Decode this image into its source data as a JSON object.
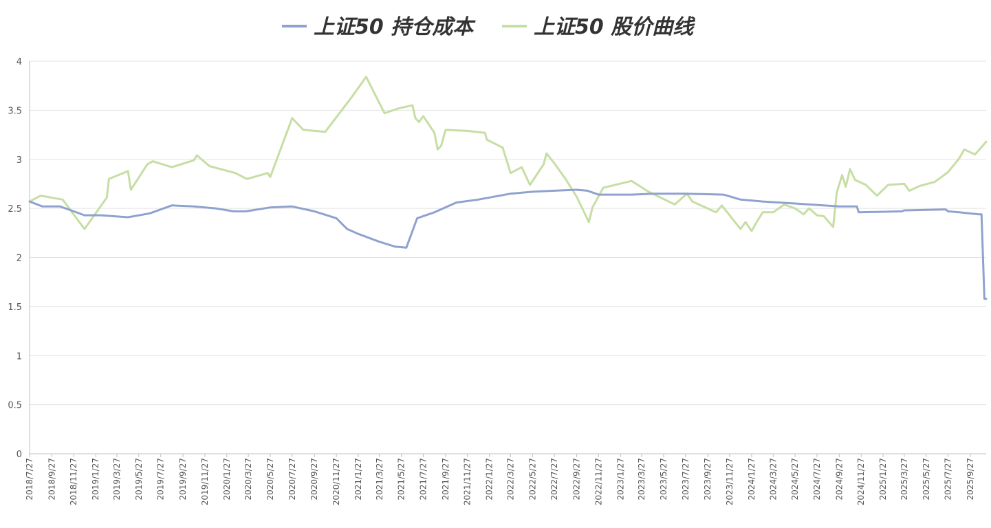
{
  "chart_data": {
    "type": "line",
    "title": "",
    "xlabel": "",
    "ylabel": "",
    "ylim": [
      0,
      4
    ],
    "yticks": [
      "0",
      "0.5",
      "1",
      "1.5",
      "2",
      "2.5",
      "3",
      "3.5",
      "4"
    ],
    "x_tick_labels": [
      "2018/7/27",
      "2018/9/27",
      "2018/11/27",
      "2019/1/27",
      "2019/3/27",
      "2019/5/27",
      "2019/7/27",
      "2019/9/27",
      "2019/11/27",
      "2020/1/27",
      "2020/3/27",
      "2020/5/27",
      "2020/7/27",
      "2020/9/27",
      "2020/11/27",
      "2021/1/27",
      "2021/3/27",
      "2021/5/27",
      "2021/7/27",
      "2021/9/27",
      "2021/11/27",
      "2022/1/27",
      "2022/3/27",
      "2022/5/27",
      "2022/7/27",
      "2022/9/27",
      "2022/11/27",
      "2023/1/27",
      "2023/3/27",
      "2023/5/27",
      "2023/7/27",
      "2023/9/27",
      "2023/11/27",
      "2024/1/27",
      "2024/3/27",
      "2024/5/27",
      "2024/7/27",
      "2024/9/27",
      "2024/11/27",
      "2025/1/27",
      "2025/3/27",
      "2025/5/27",
      "2025/7/27",
      "2025/9/27"
    ],
    "x_range": [
      "2018/7/27",
      "2025/11/10"
    ],
    "grid": true,
    "legend_position": "top-center",
    "series": [
      {
        "name": "上证50 持仓成本",
        "color": "#8fa2cf",
        "points": [
          [
            "2018/7/27",
            2.57
          ],
          [
            "2018/9/1",
            2.52
          ],
          [
            "2018/10/20",
            2.52
          ],
          [
            "2018/11/27",
            2.47
          ],
          [
            "2018/12/27",
            2.43
          ],
          [
            "2019/2/10",
            2.43
          ],
          [
            "2019/4/27",
            2.41
          ],
          [
            "2019/6/27",
            2.45
          ],
          [
            "2019/8/27",
            2.53
          ],
          [
            "2019/10/27",
            2.52
          ],
          [
            "2019/12/27",
            2.5
          ],
          [
            "2020/2/15",
            2.47
          ],
          [
            "2020/3/20",
            2.47
          ],
          [
            "2020/5/27",
            2.51
          ],
          [
            "2020/7/27",
            2.52
          ],
          [
            "2020/9/27",
            2.47
          ],
          [
            "2020/11/27",
            2.4
          ],
          [
            "2020/12/27",
            2.29
          ],
          [
            "2021/1/27",
            2.24
          ],
          [
            "2021/3/27",
            2.16
          ],
          [
            "2021/5/10",
            2.11
          ],
          [
            "2021/6/10",
            2.1
          ],
          [
            "2021/7/10",
            2.4
          ],
          [
            "2021/8/27",
            2.46
          ],
          [
            "2021/10/27",
            2.56
          ],
          [
            "2021/12/27",
            2.59
          ],
          [
            "2022/3/27",
            2.65
          ],
          [
            "2022/5/27",
            2.67
          ],
          [
            "2022/7/27",
            2.68
          ],
          [
            "2022/9/27",
            2.69
          ],
          [
            "2022/10/27",
            2.68
          ],
          [
            "2022/11/27",
            2.64
          ],
          [
            "2023/2/27",
            2.64
          ],
          [
            "2023/4/27",
            2.65
          ],
          [
            "2023/7/27",
            2.65
          ],
          [
            "2023/11/10",
            2.64
          ],
          [
            "2023/12/27",
            2.59
          ],
          [
            "2024/2/27",
            2.57
          ],
          [
            "2024/5/27",
            2.55
          ],
          [
            "2024/9/27",
            2.52
          ],
          [
            "2024/11/15",
            2.52
          ],
          [
            "2024/11/20",
            2.46
          ],
          [
            "2025/3/20",
            2.47
          ],
          [
            "2025/3/27",
            2.48
          ],
          [
            "2025/7/20",
            2.49
          ],
          [
            "2025/7/27",
            2.47
          ],
          [
            "2025/8/27",
            2.46
          ],
          [
            "2025/10/20",
            2.44
          ],
          [
            "2025/10/28",
            2.44
          ],
          [
            "2025/11/5",
            1.58
          ],
          [
            "2025/11/10",
            1.58
          ]
        ]
      },
      {
        "name": "上证50 股价曲线",
        "color": "#c6dea3",
        "points": [
          [
            "2018/7/27",
            2.57
          ],
          [
            "2018/8/27",
            2.63
          ],
          [
            "2018/10/27",
            2.59
          ],
          [
            "2018/12/27",
            2.29
          ],
          [
            "2019/2/27",
            2.61
          ],
          [
            "2019/3/5",
            2.8
          ],
          [
            "2019/4/27",
            2.88
          ],
          [
            "2019/5/5",
            2.69
          ],
          [
            "2019/6/20",
            2.95
          ],
          [
            "2019/7/5",
            2.98
          ],
          [
            "2019/8/27",
            2.92
          ],
          [
            "2019/10/27",
            2.99
          ],
          [
            "2019/11/5",
            3.04
          ],
          [
            "2019/12/10",
            2.93
          ],
          [
            "2020/2/20",
            2.86
          ],
          [
            "2020/3/23",
            2.8
          ],
          [
            "2020/5/20",
            2.86
          ],
          [
            "2020/5/27",
            2.82
          ],
          [
            "2020/7/27",
            3.42
          ],
          [
            "2020/8/27",
            3.3
          ],
          [
            "2020/10/27",
            3.28
          ],
          [
            "2021/1/10",
            3.64
          ],
          [
            "2021/2/18",
            3.84
          ],
          [
            "2021/4/10",
            3.47
          ],
          [
            "2021/5/20",
            3.52
          ],
          [
            "2021/6/27",
            3.55
          ],
          [
            "2021/7/5",
            3.42
          ],
          [
            "2021/7/15",
            3.38
          ],
          [
            "2021/7/27",
            3.44
          ],
          [
            "2021/8/27",
            3.27
          ],
          [
            "2021/9/5",
            3.1
          ],
          [
            "2021/9/15",
            3.14
          ],
          [
            "2021/9/27",
            3.3
          ],
          [
            "2021/11/27",
            3.29
          ],
          [
            "2022/1/15",
            3.27
          ],
          [
            "2022/1/20",
            3.2
          ],
          [
            "2022/3/5",
            3.12
          ],
          [
            "2022/3/27",
            2.86
          ],
          [
            "2022/4/27",
            2.92
          ],
          [
            "2022/5/20",
            2.74
          ],
          [
            "2022/6/27",
            2.95
          ],
          [
            "2022/7/5",
            3.06
          ],
          [
            "2022/7/27",
            2.96
          ],
          [
            "2022/8/27",
            2.8
          ],
          [
            "2022/9/27",
            2.62
          ],
          [
            "2022/10/31",
            2.36
          ],
          [
            "2022/11/10",
            2.51
          ],
          [
            "2022/12/10",
            2.71
          ],
          [
            "2023/2/27",
            2.78
          ],
          [
            "2023/4/15",
            2.67
          ],
          [
            "2023/6/27",
            2.54
          ],
          [
            "2023/7/31",
            2.65
          ],
          [
            "2023/8/15",
            2.57
          ],
          [
            "2023/10/20",
            2.46
          ],
          [
            "2023/11/5",
            2.53
          ],
          [
            "2023/12/27",
            2.29
          ],
          [
            "2024/1/10",
            2.36
          ],
          [
            "2024/1/27",
            2.27
          ],
          [
            "2024/2/10",
            2.36
          ],
          [
            "2024/2/27",
            2.46
          ],
          [
            "2024/3/27",
            2.46
          ],
          [
            "2024/4/27",
            2.54
          ],
          [
            "2024/5/27",
            2.5
          ],
          [
            "2024/6/20",
            2.44
          ],
          [
            "2024/7/5",
            2.5
          ],
          [
            "2024/7/27",
            2.43
          ],
          [
            "2024/8/15",
            2.42
          ],
          [
            "2024/9/10",
            2.31
          ],
          [
            "2024/9/20",
            2.66
          ],
          [
            "2024/10/5",
            2.84
          ],
          [
            "2024/10/15",
            2.72
          ],
          [
            "2024/10/27",
            2.9
          ],
          [
            "2024/11/10",
            2.79
          ],
          [
            "2024/12/10",
            2.74
          ],
          [
            "2025/1/10",
            2.63
          ],
          [
            "2025/2/10",
            2.74
          ],
          [
            "2025/3/27",
            2.75
          ],
          [
            "2025/4/10",
            2.68
          ],
          [
            "2025/5/10",
            2.73
          ],
          [
            "2025/6/20",
            2.77
          ],
          [
            "2025/7/27",
            2.87
          ],
          [
            "2025/8/27",
            3.01
          ],
          [
            "2025/9/10",
            3.1
          ],
          [
            "2025/10/10",
            3.05
          ],
          [
            "2025/10/27",
            3.12
          ],
          [
            "2025/11/10",
            3.18
          ]
        ]
      }
    ]
  }
}
